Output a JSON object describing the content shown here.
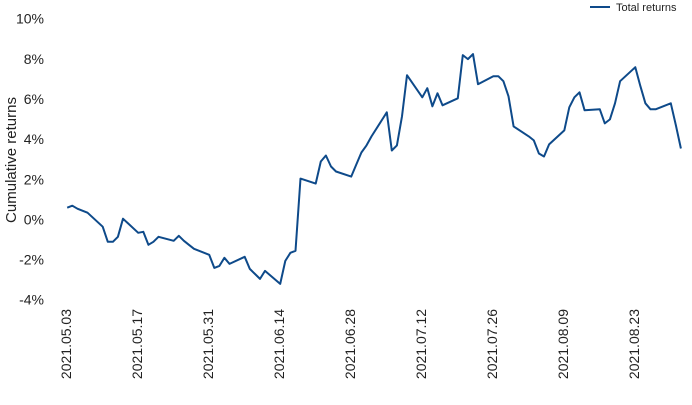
{
  "chart_data": {
    "type": "line",
    "y_label": "Cumulative returns",
    "legend": "top-right",
    "x": [
      "2021.05.03",
      "2021.05.04",
      "2021.05.05",
      "2021.05.06",
      "2021.05.07",
      "2021.05.10",
      "2021.05.11",
      "2021.05.12",
      "2021.05.13",
      "2021.05.14",
      "2021.05.17",
      "2021.05.18",
      "2021.05.19",
      "2021.05.20",
      "2021.05.21",
      "2021.05.24",
      "2021.05.25",
      "2021.05.26",
      "2021.05.27",
      "2021.05.28",
      "2021.05.31",
      "2021.06.01",
      "2021.06.02",
      "2021.06.03",
      "2021.06.04",
      "2021.06.07",
      "2021.06.08",
      "2021.06.09",
      "2021.06.10",
      "2021.06.11",
      "2021.06.14",
      "2021.06.15",
      "2021.06.16",
      "2021.06.17",
      "2021.06.18",
      "2021.06.21",
      "2021.06.22",
      "2021.06.23",
      "2021.06.24",
      "2021.06.25",
      "2021.06.28",
      "2021.06.29",
      "2021.06.30",
      "2021.07.01",
      "2021.07.02",
      "2021.07.05",
      "2021.07.06",
      "2021.07.07",
      "2021.07.08",
      "2021.07.09",
      "2021.07.12",
      "2021.07.13",
      "2021.07.14",
      "2021.07.15",
      "2021.07.16",
      "2021.07.19",
      "2021.07.20",
      "2021.07.21",
      "2021.07.22",
      "2021.07.23",
      "2021.07.26",
      "2021.07.27",
      "2021.07.28",
      "2021.07.29",
      "2021.07.30",
      "2021.08.02",
      "2021.08.03",
      "2021.08.04",
      "2021.08.05",
      "2021.08.06",
      "2021.08.09",
      "2021.08.10",
      "2021.08.11",
      "2021.08.12",
      "2021.08.13",
      "2021.08.16",
      "2021.08.17",
      "2021.08.18",
      "2021.08.19",
      "2021.08.20",
      "2021.08.23",
      "2021.08.24",
      "2021.08.25",
      "2021.08.26",
      "2021.08.27",
      "2021.08.30",
      "2021.08.31",
      "2021.09.01"
    ],
    "series": [
      {
        "name": "Total returns",
        "color": "#0e4a8a",
        "values": [
          0.65,
          0.75,
          0.6,
          0.5,
          0.4,
          -0.3,
          -1.05,
          -1.05,
          -0.8,
          0.1,
          -0.6,
          -0.55,
          -1.2,
          -1.05,
          -0.8,
          -1.0,
          -0.75,
          -1.0,
          -1.2,
          -1.4,
          -1.7,
          -2.35,
          -2.25,
          -1.85,
          -2.15,
          -1.8,
          -2.4,
          -2.65,
          -2.9,
          -2.5,
          -3.15,
          -2.0,
          -1.6,
          -1.5,
          2.1,
          1.85,
          2.95,
          3.25,
          2.7,
          2.45,
          2.2,
          2.8,
          3.4,
          3.75,
          4.2,
          5.4,
          3.5,
          3.75,
          5.2,
          7.25,
          6.15,
          6.6,
          5.7,
          6.35,
          5.75,
          6.1,
          8.25,
          8.05,
          8.3,
          6.8,
          7.2,
          7.2,
          6.95,
          6.2,
          4.7,
          4.2,
          4.0,
          3.35,
          3.2,
          3.8,
          4.5,
          5.65,
          6.15,
          6.4,
          5.5,
          5.55,
          4.85,
          5.05,
          5.85,
          6.95,
          7.65,
          6.7,
          5.85,
          5.55,
          5.55,
          5.85,
          4.75,
          3.6
        ]
      }
    ],
    "xlim": [
      "2021.04.30",
      "2021.09.02"
    ],
    "xticks": [
      "2021.05.03",
      "2021.05.17",
      "2021.05.31",
      "2021.06.14",
      "2021.06.28",
      "2021.07.12",
      "2021.07.26",
      "2021.08.09",
      "2021.08.23"
    ],
    "ylim": [
      -4,
      10
    ],
    "yticks": [
      {
        "value": -4,
        "label": "-4%"
      },
      {
        "value": -2,
        "label": "-2%"
      },
      {
        "value": 0,
        "label": "0%"
      },
      {
        "value": 2,
        "label": "2%"
      },
      {
        "value": 4,
        "label": "4%"
      },
      {
        "value": 6,
        "label": "6%"
      },
      {
        "value": 8,
        "label": "8%"
      },
      {
        "value": 10,
        "label": "10%"
      }
    ]
  }
}
